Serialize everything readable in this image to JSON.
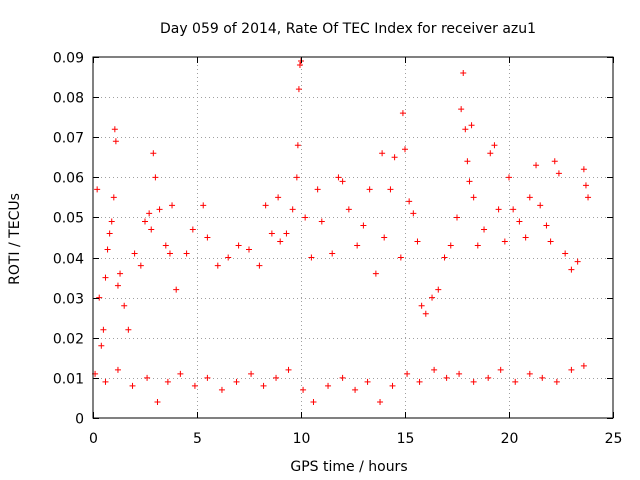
{
  "chart_data": {
    "type": "scatter",
    "title": "Day 059 of 2014, Rate Of TEC Index for receiver azu1",
    "xlabel": "GPS time / hours",
    "ylabel": "ROTI / TECUs",
    "xlim": [
      0,
      25
    ],
    "ylim": [
      0,
      0.09
    ],
    "grid": true,
    "marker": "+",
    "color": "#ff0000",
    "x_ticks": [
      0,
      5,
      10,
      15,
      20,
      25
    ],
    "x_tick_labels": [
      "0",
      "5",
      "10",
      "15",
      "20",
      "25"
    ],
    "y_ticks": [
      0,
      0.01,
      0.02,
      0.03,
      0.04,
      0.05,
      0.06,
      0.07,
      0.08,
      0.09
    ],
    "y_tick_labels": [
      "0",
      "0.01",
      "0.02",
      "0.03",
      "0.04",
      "0.05",
      "0.06",
      "0.07",
      "0.08",
      "0.09"
    ],
    "series": [
      {
        "name": "ROTI",
        "points": [
          [
            0.2,
            0.057
          ],
          [
            0.3,
            0.03
          ],
          [
            0.4,
            0.018
          ],
          [
            0.5,
            0.022
          ],
          [
            0.6,
            0.035
          ],
          [
            0.7,
            0.042
          ],
          [
            0.8,
            0.046
          ],
          [
            0.9,
            0.049
          ],
          [
            1.0,
            0.055
          ],
          [
            1.05,
            0.072
          ],
          [
            1.1,
            0.069
          ],
          [
            1.2,
            0.033
          ],
          [
            1.3,
            0.036
          ],
          [
            1.5,
            0.028
          ],
          [
            1.7,
            0.022
          ],
          [
            2.0,
            0.041
          ],
          [
            2.3,
            0.038
          ],
          [
            2.5,
            0.049
          ],
          [
            2.7,
            0.051
          ],
          [
            2.8,
            0.047
          ],
          [
            2.9,
            0.066
          ],
          [
            3.0,
            0.06
          ],
          [
            3.2,
            0.052
          ],
          [
            3.5,
            0.043
          ],
          [
            3.7,
            0.041
          ],
          [
            3.8,
            0.053
          ],
          [
            4.0,
            0.032
          ],
          [
            4.5,
            0.041
          ],
          [
            4.8,
            0.047
          ],
          [
            5.3,
            0.053
          ],
          [
            5.5,
            0.045
          ],
          [
            6.0,
            0.038
          ],
          [
            6.5,
            0.04
          ],
          [
            7.0,
            0.043
          ],
          [
            7.5,
            0.042
          ],
          [
            8.0,
            0.038
          ],
          [
            8.3,
            0.053
          ],
          [
            8.6,
            0.046
          ],
          [
            8.9,
            0.055
          ],
          [
            9.0,
            0.044
          ],
          [
            9.3,
            0.046
          ],
          [
            9.6,
            0.052
          ],
          [
            9.8,
            0.06
          ],
          [
            9.85,
            0.068
          ],
          [
            9.9,
            0.082
          ],
          [
            9.95,
            0.088
          ],
          [
            10.0,
            0.089
          ],
          [
            10.2,
            0.05
          ],
          [
            10.5,
            0.04
          ],
          [
            10.8,
            0.057
          ],
          [
            11.0,
            0.049
          ],
          [
            11.5,
            0.041
          ],
          [
            11.8,
            0.06
          ],
          [
            12.0,
            0.059
          ],
          [
            12.3,
            0.052
          ],
          [
            12.7,
            0.043
          ],
          [
            13.0,
            0.048
          ],
          [
            13.3,
            0.057
          ],
          [
            13.6,
            0.036
          ],
          [
            13.9,
            0.066
          ],
          [
            14.0,
            0.045
          ],
          [
            14.3,
            0.057
          ],
          [
            14.5,
            0.065
          ],
          [
            14.8,
            0.04
          ],
          [
            14.9,
            0.076
          ],
          [
            15.0,
            0.067
          ],
          [
            15.2,
            0.054
          ],
          [
            15.4,
            0.051
          ],
          [
            15.6,
            0.044
          ],
          [
            15.8,
            0.028
          ],
          [
            16.0,
            0.026
          ],
          [
            16.3,
            0.03
          ],
          [
            16.6,
            0.032
          ],
          [
            16.9,
            0.04
          ],
          [
            17.2,
            0.043
          ],
          [
            17.5,
            0.05
          ],
          [
            17.7,
            0.077
          ],
          [
            17.8,
            0.086
          ],
          [
            17.9,
            0.072
          ],
          [
            18.0,
            0.064
          ],
          [
            18.1,
            0.059
          ],
          [
            18.2,
            0.073
          ],
          [
            18.3,
            0.055
          ],
          [
            18.5,
            0.043
          ],
          [
            18.8,
            0.047
          ],
          [
            19.1,
            0.066
          ],
          [
            19.3,
            0.068
          ],
          [
            19.5,
            0.052
          ],
          [
            19.8,
            0.044
          ],
          [
            20.0,
            0.06
          ],
          [
            20.2,
            0.052
          ],
          [
            20.5,
            0.049
          ],
          [
            20.8,
            0.045
          ],
          [
            21.0,
            0.055
          ],
          [
            21.3,
            0.063
          ],
          [
            21.5,
            0.053
          ],
          [
            21.8,
            0.048
          ],
          [
            22.0,
            0.044
          ],
          [
            22.2,
            0.064
          ],
          [
            22.4,
            0.061
          ],
          [
            22.7,
            0.041
          ],
          [
            23.0,
            0.037
          ],
          [
            23.3,
            0.039
          ],
          [
            23.6,
            0.062
          ],
          [
            23.7,
            0.058
          ],
          [
            23.8,
            0.055
          ],
          [
            0.1,
            0.011
          ],
          [
            0.6,
            0.009
          ],
          [
            1.2,
            0.012
          ],
          [
            1.9,
            0.008
          ],
          [
            2.6,
            0.01
          ],
          [
            3.1,
            0.004
          ],
          [
            3.6,
            0.009
          ],
          [
            4.2,
            0.011
          ],
          [
            4.9,
            0.008
          ],
          [
            5.5,
            0.01
          ],
          [
            6.2,
            0.007
          ],
          [
            6.9,
            0.009
          ],
          [
            7.6,
            0.011
          ],
          [
            8.2,
            0.008
          ],
          [
            8.8,
            0.01
          ],
          [
            9.4,
            0.012
          ],
          [
            10.1,
            0.007
          ],
          [
            10.6,
            0.004
          ],
          [
            11.3,
            0.008
          ],
          [
            12.0,
            0.01
          ],
          [
            12.6,
            0.007
          ],
          [
            13.2,
            0.009
          ],
          [
            13.8,
            0.004
          ],
          [
            14.4,
            0.008
          ],
          [
            15.1,
            0.011
          ],
          [
            15.7,
            0.009
          ],
          [
            16.4,
            0.012
          ],
          [
            17.0,
            0.01
          ],
          [
            17.6,
            0.011
          ],
          [
            18.3,
            0.009
          ],
          [
            19.0,
            0.01
          ],
          [
            19.6,
            0.012
          ],
          [
            20.3,
            0.009
          ],
          [
            21.0,
            0.011
          ],
          [
            21.6,
            0.01
          ],
          [
            22.3,
            0.009
          ],
          [
            23.0,
            0.012
          ],
          [
            23.6,
            0.013
          ]
        ]
      }
    ]
  }
}
